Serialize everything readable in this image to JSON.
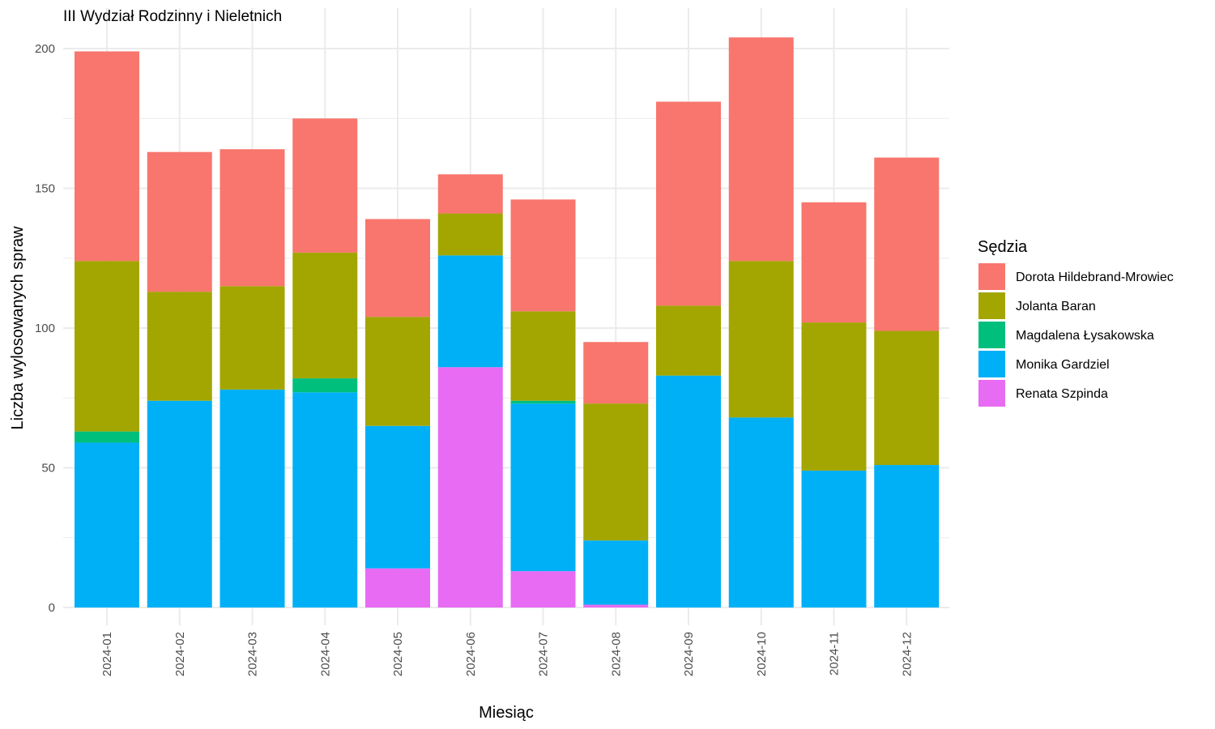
{
  "chart_data": {
    "type": "bar",
    "stacked": true,
    "title": "III Wydział Rodzinny i Nieletnich",
    "xlabel": "Miesiąc",
    "ylabel": "Liczba wylosowanych spraw",
    "ylim": [
      0,
      210
    ],
    "yticks": [
      0,
      50,
      100,
      150,
      200
    ],
    "grid": true,
    "legend_title": "Sędzia",
    "legend_position": "right",
    "categories": [
      "2024-01",
      "2024-02",
      "2024-03",
      "2024-04",
      "2024-05",
      "2024-06",
      "2024-07",
      "2024-08",
      "2024-09",
      "2024-10",
      "2024-11",
      "2024-12"
    ],
    "series": [
      {
        "name": "Renata Szpinda",
        "color": "#E76BF3",
        "values": [
          0,
          0,
          0,
          0,
          14,
          86,
          13,
          1,
          0,
          0,
          0,
          0
        ]
      },
      {
        "name": "Monika Gardziel",
        "color": "#00B0F6",
        "values": [
          59,
          74,
          78,
          77,
          51,
          40,
          60,
          23,
          83,
          68,
          49,
          51
        ]
      },
      {
        "name": "Magdalena Łysakowska",
        "color": "#00BF7D",
        "values": [
          4,
          0,
          0,
          5,
          0,
          0,
          1,
          0,
          0,
          0,
          0,
          0
        ]
      },
      {
        "name": "Jolanta Baran",
        "color": "#A3A500",
        "values": [
          61,
          39,
          37,
          45,
          39,
          15,
          32,
          49,
          25,
          56,
          53,
          48
        ]
      },
      {
        "name": "Dorota Hildebrand-Mrowiec",
        "color": "#F8766D",
        "values": [
          75,
          50,
          49,
          48,
          35,
          14,
          40,
          22,
          73,
          80,
          43,
          62
        ]
      }
    ],
    "legend_order": [
      "Dorota Hildebrand-Mrowiec",
      "Jolanta Baran",
      "Magdalena Łysakowska",
      "Monika Gardziel",
      "Renata Szpinda"
    ]
  }
}
